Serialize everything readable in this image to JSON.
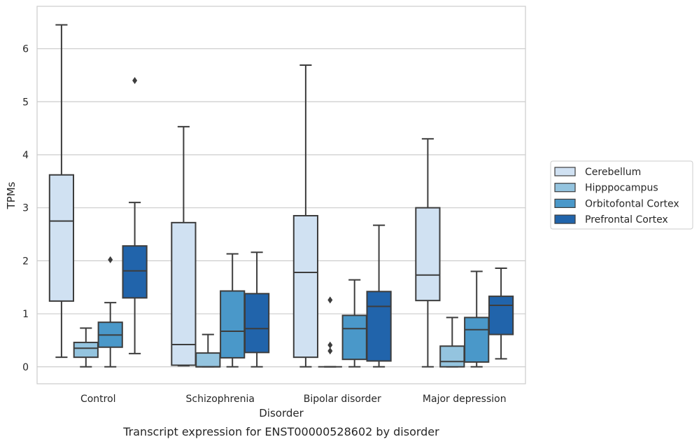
{
  "chart_data": {
    "type": "box",
    "xlabel": "Disorder",
    "ylabel": "TPMs",
    "caption": "Transcript expression for ENST00000528602 by disorder",
    "ylim": [
      -0.32,
      6.8
    ],
    "yticks": [
      0,
      1,
      2,
      3,
      4,
      5,
      6
    ],
    "ytick_labels": [
      "0",
      "1",
      "2",
      "3",
      "4",
      "5",
      "6"
    ],
    "grid": "horizontal",
    "legend_placement": "right",
    "categories": [
      "Control",
      "Schizophrenia",
      "Bipolar disorder",
      "Major depression"
    ],
    "series": [
      {
        "name": "Cerebellum",
        "color": "#d0e1f2",
        "boxes": [
          {
            "whislo": 0.18,
            "q1": 1.24,
            "med": 2.75,
            "q3": 3.62,
            "whishi": 6.45,
            "fliers": []
          },
          {
            "whislo": 0.02,
            "q1": 0.03,
            "med": 0.42,
            "q3": 2.72,
            "whishi": 4.53,
            "fliers": []
          },
          {
            "whislo": 0.0,
            "q1": 0.18,
            "med": 1.78,
            "q3": 2.85,
            "whishi": 5.69,
            "fliers": []
          },
          {
            "whislo": 0.0,
            "q1": 1.25,
            "med": 1.73,
            "q3": 3.0,
            "whishi": 4.3,
            "fliers": []
          }
        ]
      },
      {
        "name": "Hipppocampus",
        "color": "#94c4df",
        "boxes": [
          {
            "whislo": 0.0,
            "q1": 0.18,
            "med": 0.35,
            "q3": 0.46,
            "whishi": 0.73,
            "fliers": []
          },
          {
            "whislo": 0.0,
            "q1": 0.0,
            "med": 0.0,
            "q3": 0.26,
            "whishi": 0.61,
            "fliers": []
          },
          {
            "whislo": 0.0,
            "q1": 0.0,
            "med": 0.0,
            "q3": 0.0,
            "whishi": 0.0,
            "fliers": [
              1.26,
              0.41,
              0.3
            ]
          },
          {
            "whislo": 0.0,
            "q1": 0.0,
            "med": 0.1,
            "q3": 0.39,
            "whishi": 0.93,
            "fliers": []
          }
        ]
      },
      {
        "name": "Orbitofontal Cortex",
        "color": "#4a98c9",
        "boxes": [
          {
            "whislo": 0.0,
            "q1": 0.37,
            "med": 0.6,
            "q3": 0.84,
            "whishi": 1.21,
            "fliers": [
              2.02
            ]
          },
          {
            "whislo": 0.0,
            "q1": 0.17,
            "med": 0.67,
            "q3": 1.43,
            "whishi": 2.13,
            "fliers": []
          },
          {
            "whislo": 0.0,
            "q1": 0.14,
            "med": 0.72,
            "q3": 0.97,
            "whishi": 1.64,
            "fliers": []
          },
          {
            "whislo": 0.0,
            "q1": 0.09,
            "med": 0.7,
            "q3": 0.93,
            "whishi": 1.8,
            "fliers": []
          }
        ]
      },
      {
        "name": "Prefrontal Cortex",
        "color": "#2164ab",
        "boxes": [
          {
            "whislo": 0.25,
            "q1": 1.3,
            "med": 1.81,
            "q3": 2.28,
            "whishi": 3.1,
            "fliers": [
              5.4
            ]
          },
          {
            "whislo": 0.0,
            "q1": 0.27,
            "med": 0.72,
            "q3": 1.38,
            "whishi": 2.16,
            "fliers": []
          },
          {
            "whislo": 0.0,
            "q1": 0.11,
            "med": 1.14,
            "q3": 1.42,
            "whishi": 2.67,
            "fliers": []
          },
          {
            "whislo": 0.15,
            "q1": 0.61,
            "med": 1.16,
            "q3": 1.33,
            "whishi": 1.86,
            "fliers": []
          }
        ]
      }
    ]
  }
}
